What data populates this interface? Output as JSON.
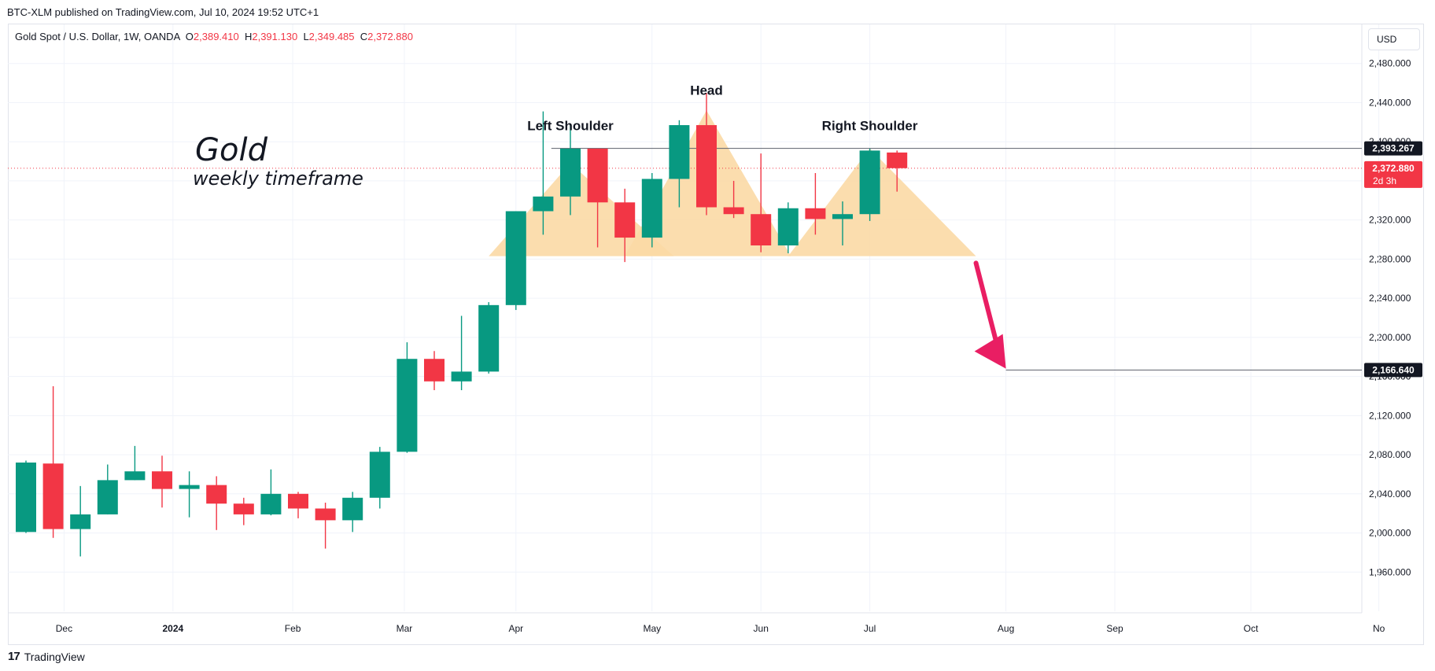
{
  "header": {
    "published_line": "BTC-XLM published on TradingView.com, Jul 10, 2024 19:52 UTC+1"
  },
  "legend": {
    "symbol": "Gold Spot / U.S. Dollar, 1W, OANDA",
    "o_label": "O",
    "o_value": "2,389.410",
    "h_label": "H",
    "h_value": "2,391.130",
    "l_label": "L",
    "l_value": "2,349.485",
    "c_label": "C",
    "c_value": "2,372.880"
  },
  "currency_button": "USD",
  "footer": {
    "brand": "TradingView",
    "logo_glyph": "17"
  },
  "colors": {
    "up": "#089981",
    "down": "#f23645",
    "pattern_fill": "#fbd9a5",
    "arrow": "#e91e63",
    "axis_text": "#131722",
    "grid": "#f0f3fa"
  },
  "chart_data": {
    "type": "candlestick",
    "title": "Gold",
    "subtitle": "weekly timeframe",
    "ylim": [
      1920,
      2520
    ],
    "y_ticks": [
      1960,
      2000,
      2040,
      2080,
      2120,
      2160,
      2200,
      2240,
      2280,
      2320,
      2360,
      2400,
      2440,
      2480
    ],
    "y_tick_labels": [
      "1,960.000",
      "2,000.000",
      "2,040.000",
      "2,080.000",
      "2,120.000",
      "2,160.000",
      "2,200.000",
      "2,240.000",
      "2,280.000",
      "2,320.000",
      "2,360.000",
      "2,400.000",
      "2,440.000",
      "2,480.000"
    ],
    "x_labels": [
      {
        "label": "Dec",
        "week": 1.4
      },
      {
        "label": "2024",
        "week": 5.4,
        "bold": true
      },
      {
        "label": "Feb",
        "week": 9.8
      },
      {
        "label": "Mar",
        "week": 13.9
      },
      {
        "label": "Apr",
        "week": 18.0
      },
      {
        "label": "May",
        "week": 23.0
      },
      {
        "label": "Jun",
        "week": 27.0
      },
      {
        "label": "Jul",
        "week": 31.0
      },
      {
        "label": "Aug",
        "week": 36.0
      },
      {
        "label": "Sep",
        "week": 40.0
      },
      {
        "label": "Oct",
        "week": 45.0
      },
      {
        "label": "No",
        "week": 49.7
      }
    ],
    "candles": [
      {
        "o": 2001,
        "h": 2074,
        "l": 2000,
        "c": 2072
      },
      {
        "o": 2071,
        "h": 2150,
        "l": 1995,
        "c": 2004
      },
      {
        "o": 2004,
        "h": 2048,
        "l": 1976,
        "c": 2019
      },
      {
        "o": 2019,
        "h": 2070,
        "l": 2019,
        "c": 2054
      },
      {
        "o": 2054,
        "h": 2089,
        "l": 2054,
        "c": 2063
      },
      {
        "o": 2063,
        "h": 2079,
        "l": 2026,
        "c": 2045
      },
      {
        "o": 2045,
        "h": 2063,
        "l": 2016,
        "c": 2049
      },
      {
        "o": 2049,
        "h": 2058,
        "l": 2003,
        "c": 2030
      },
      {
        "o": 2030,
        "h": 2036,
        "l": 2008,
        "c": 2019
      },
      {
        "o": 2019,
        "h": 2065,
        "l": 2018,
        "c": 2040
      },
      {
        "o": 2040,
        "h": 2042,
        "l": 2015,
        "c": 2025
      },
      {
        "o": 2025,
        "h": 2031,
        "l": 1984,
        "c": 2013
      },
      {
        "o": 2013,
        "h": 2042,
        "l": 2001,
        "c": 2036
      },
      {
        "o": 2036,
        "h": 2088,
        "l": 2025,
        "c": 2083
      },
      {
        "o": 2083,
        "h": 2195,
        "l": 2082,
        "c": 2178
      },
      {
        "o": 2178,
        "h": 2186,
        "l": 2146,
        "c": 2155
      },
      {
        "o": 2155,
        "h": 2222,
        "l": 2146,
        "c": 2165
      },
      {
        "o": 2165,
        "h": 2236,
        "l": 2163,
        "c": 2233
      },
      {
        "o": 2233,
        "h": 2329,
        "l": 2228,
        "c": 2329
      },
      {
        "o": 2329,
        "h": 2431,
        "l": 2305,
        "c": 2344
      },
      {
        "o": 2344,
        "h": 2418,
        "l": 2325,
        "c": 2393
      },
      {
        "o": 2393,
        "h": 2393,
        "l": 2292,
        "c": 2338
      },
      {
        "o": 2338,
        "h": 2352,
        "l": 2277,
        "c": 2302
      },
      {
        "o": 2302,
        "h": 2368,
        "l": 2292,
        "c": 2362
      },
      {
        "o": 2362,
        "h": 2422,
        "l": 2333,
        "c": 2417
      },
      {
        "o": 2417,
        "h": 2450,
        "l": 2325,
        "c": 2333
      },
      {
        "o": 2333,
        "h": 2360,
        "l": 2322,
        "c": 2326
      },
      {
        "o": 2326,
        "h": 2388,
        "l": 2287,
        "c": 2294
      },
      {
        "o": 2294,
        "h": 2338,
        "l": 2286,
        "c": 2332
      },
      {
        "o": 2332,
        "h": 2368,
        "l": 2305,
        "c": 2321
      },
      {
        "o": 2321,
        "h": 2339,
        "l": 2294,
        "c": 2326
      },
      {
        "o": 2326,
        "h": 2393,
        "l": 2319,
        "c": 2391
      },
      {
        "o": 2389,
        "h": 2391,
        "l": 2349,
        "c": 2373
      }
    ],
    "pattern": {
      "triangles": [
        {
          "apex_week": 20.0,
          "apex_price": 2378,
          "left_week": 17.0,
          "right_week": 23.8,
          "base_price": 2283
        },
        {
          "apex_week": 25.0,
          "apex_price": 2432,
          "left_week": 22.0,
          "right_week": 28.1,
          "base_price": 2283
        },
        {
          "apex_week": 31.0,
          "apex_price": 2393,
          "left_week": 28.0,
          "right_week": 34.9,
          "base_price": 2283
        }
      ],
      "labels": [
        {
          "text": "Left Shoulder",
          "week": 20.0,
          "price": 2412
        },
        {
          "text": "Head",
          "week": 25.0,
          "price": 2448
        },
        {
          "text": "Right Shoulder",
          "week": 31.0,
          "price": 2412
        }
      ]
    },
    "neckline_price": 2393.267,
    "neckline_label": "2,393.267",
    "target_price": 2166.64,
    "target_label": "2,166.640",
    "target_start_week": 36.0,
    "target_axis_partial": "2,160.000",
    "current_price": 2372.88,
    "current_label": "2,372.880",
    "countdown_label": "2d 3h",
    "arrow": {
      "from_week": 34.9,
      "from_price": 2276,
      "to_week": 36.0,
      "to_price": 2168
    }
  }
}
